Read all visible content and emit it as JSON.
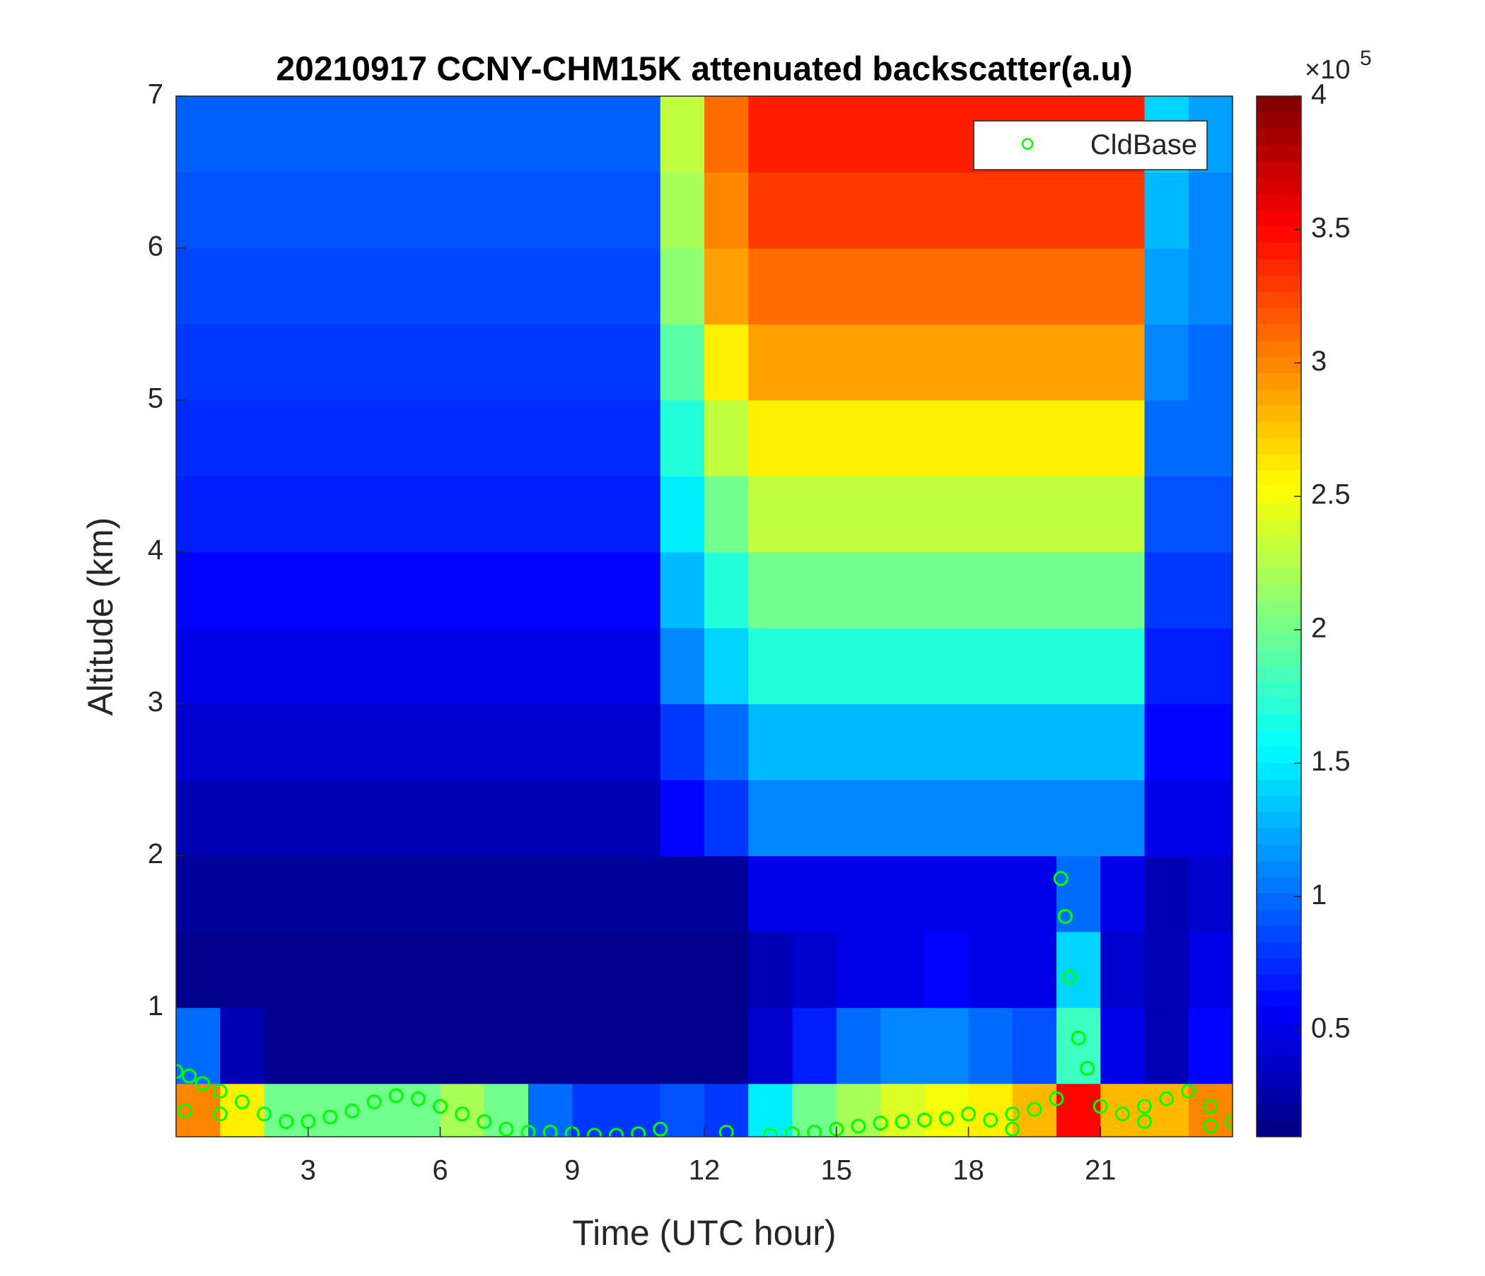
{
  "chart_data": {
    "type": "heatmap",
    "title": "20210917 CCNY-CHM15K attenuated backscatter(a.u)",
    "xlabel": "Time (UTC hour)",
    "ylabel": "Altitude (km)",
    "xlim": [
      0,
      24
    ],
    "ylim": [
      0.15,
      7
    ],
    "xticks": [
      3,
      6,
      9,
      12,
      15,
      18,
      21
    ],
    "yticks": [
      1,
      2,
      3,
      4,
      5,
      6,
      7
    ],
    "colormap": "jet",
    "clim": [
      0.1,
      4
    ],
    "cticks": [
      0.5,
      1,
      1.5,
      2,
      2.5,
      3,
      3.5,
      4
    ],
    "colorbar_multiplier": "×10",
    "colorbar_exponent": 5,
    "x_edges": [
      0,
      1,
      2,
      3,
      4,
      5,
      6,
      7,
      8,
      9,
      10,
      11,
      12,
      13,
      14,
      15,
      16,
      17,
      18,
      19,
      20,
      21,
      22,
      23,
      24
    ],
    "y_edges": [
      0.15,
      0.5,
      1,
      1.5,
      2,
      2.5,
      3,
      3.5,
      4,
      4.5,
      5,
      5.5,
      6,
      6.5,
      7
    ],
    "z": [
      [
        3.0,
        2.6,
        2,
        2,
        2,
        2,
        2.2,
        2,
        1,
        0.8,
        0.8,
        0.9,
        0.8,
        1.5,
        2,
        2.2,
        2.4,
        2.5,
        2.6,
        2.8,
        3.5,
        2.8,
        2.8,
        3.0
      ],
      [
        1.0,
        0.3,
        0.15,
        0.15,
        0.15,
        0.15,
        0.15,
        0.15,
        0.15,
        0.15,
        0.15,
        0.15,
        0.15,
        0.4,
        0.7,
        1.0,
        1.1,
        1.1,
        1.0,
        0.9,
        1.8,
        0.5,
        0.3,
        0.6
      ],
      [
        0.15,
        0.15,
        0.15,
        0.15,
        0.15,
        0.15,
        0.15,
        0.15,
        0.15,
        0.15,
        0.15,
        0.15,
        0.15,
        0.3,
        0.4,
        0.5,
        0.5,
        0.6,
        0.5,
        0.5,
        1.4,
        0.4,
        0.3,
        0.5
      ],
      [
        0.2,
        0.2,
        0.2,
        0.2,
        0.2,
        0.2,
        0.2,
        0.2,
        0.2,
        0.2,
        0.2,
        0.2,
        0.2,
        0.5,
        0.5,
        0.5,
        0.5,
        0.5,
        0.5,
        0.5,
        1.0,
        0.5,
        0.3,
        0.4
      ],
      [
        0.3,
        0.3,
        0.3,
        0.3,
        0.3,
        0.3,
        0.3,
        0.3,
        0.3,
        0.3,
        0.3,
        0.6,
        0.8,
        1.1,
        1.1,
        1.1,
        1.1,
        1.1,
        1.1,
        1.1,
        1.1,
        1.1,
        0.5,
        0.5
      ],
      [
        0.4,
        0.4,
        0.4,
        0.4,
        0.4,
        0.4,
        0.4,
        0.4,
        0.4,
        0.4,
        0.4,
        0.8,
        1.0,
        1.3,
        1.3,
        1.3,
        1.3,
        1.3,
        1.3,
        1.3,
        1.3,
        1.3,
        0.6,
        0.6
      ],
      [
        0.5,
        0.5,
        0.5,
        0.5,
        0.5,
        0.5,
        0.5,
        0.5,
        0.5,
        0.5,
        0.5,
        1.1,
        1.4,
        1.7,
        1.7,
        1.7,
        1.7,
        1.7,
        1.7,
        1.7,
        1.7,
        1.7,
        0.7,
        0.7
      ],
      [
        0.6,
        0.6,
        0.6,
        0.6,
        0.6,
        0.6,
        0.6,
        0.6,
        0.6,
        0.6,
        0.6,
        1.3,
        1.7,
        2.0,
        2.0,
        2.0,
        2.0,
        2.0,
        2.0,
        2.0,
        2.0,
        2.0,
        0.8,
        0.8
      ],
      [
        0.7,
        0.7,
        0.7,
        0.7,
        0.7,
        0.7,
        0.7,
        0.7,
        0.7,
        0.7,
        0.7,
        1.5,
        2.0,
        2.3,
        2.3,
        2.3,
        2.3,
        2.3,
        2.3,
        2.3,
        2.3,
        2.3,
        0.9,
        0.9
      ],
      [
        0.75,
        0.75,
        0.75,
        0.75,
        0.75,
        0.75,
        0.75,
        0.75,
        0.75,
        0.75,
        0.75,
        1.7,
        2.3,
        2.6,
        2.6,
        2.6,
        2.6,
        2.6,
        2.6,
        2.6,
        2.6,
        2.6,
        1.0,
        1.0
      ],
      [
        0.8,
        0.8,
        0.8,
        0.8,
        0.8,
        0.8,
        0.8,
        0.8,
        0.8,
        0.8,
        0.8,
        1.9,
        2.6,
        2.9,
        2.9,
        2.9,
        2.9,
        2.9,
        2.9,
        2.9,
        2.9,
        2.9,
        1.1,
        1.0
      ],
      [
        0.85,
        0.85,
        0.85,
        0.85,
        0.85,
        0.85,
        0.85,
        0.85,
        0.85,
        0.85,
        0.85,
        2.1,
        2.9,
        3.1,
        3.1,
        3.1,
        3.1,
        3.1,
        3.1,
        3.1,
        3.1,
        3.1,
        1.2,
        1.1
      ],
      [
        0.9,
        0.9,
        0.9,
        0.9,
        0.9,
        0.9,
        0.9,
        0.9,
        0.9,
        0.9,
        0.9,
        2.2,
        3.0,
        3.3,
        3.3,
        3.3,
        3.3,
        3.3,
        3.3,
        3.3,
        3.3,
        3.3,
        1.3,
        1.1
      ],
      [
        0.95,
        0.95,
        0.95,
        0.95,
        0.95,
        0.95,
        0.95,
        0.95,
        0.95,
        0.95,
        0.95,
        2.3,
        3.1,
        3.4,
        3.4,
        3.4,
        3.4,
        3.4,
        3.4,
        3.4,
        3.4,
        3.4,
        1.4,
        1.2
      ]
    ],
    "legend": "northeast",
    "series": [
      {
        "name": "CldBase",
        "color": "#00ff00",
        "x": [
          0,
          0.2,
          0.3,
          0.6,
          1,
          1,
          1.5,
          2,
          2.5,
          3,
          3.5,
          4,
          4.5,
          5,
          5.5,
          6,
          6.5,
          7,
          7.5,
          8,
          8.5,
          9,
          9.5,
          10,
          10.5,
          11,
          12.5,
          13.5,
          14,
          14.5,
          15,
          15.5,
          16,
          16.5,
          17,
          17.5,
          18,
          18.5,
          19,
          19,
          19.5,
          20,
          20.1,
          20.2,
          20.3,
          20.5,
          20.7,
          21,
          21.5,
          22,
          22,
          22.5,
          23,
          23.5,
          23.5,
          24
        ],
        "y": [
          0.58,
          0.32,
          0.55,
          0.5,
          0.45,
          0.3,
          0.38,
          0.3,
          0.25,
          0.25,
          0.28,
          0.32,
          0.38,
          0.42,
          0.4,
          0.35,
          0.3,
          0.25,
          0.2,
          0.18,
          0.18,
          0.17,
          0.16,
          0.16,
          0.17,
          0.2,
          0.18,
          0.16,
          0.17,
          0.18,
          0.2,
          0.22,
          0.24,
          0.25,
          0.26,
          0.27,
          0.3,
          0.26,
          0.3,
          0.2,
          0.33,
          0.4,
          1.85,
          1.6,
          1.2,
          0.8,
          0.6,
          0.35,
          0.3,
          0.35,
          0.25,
          0.4,
          0.45,
          0.35,
          0.22,
          0.25
        ]
      }
    ]
  }
}
